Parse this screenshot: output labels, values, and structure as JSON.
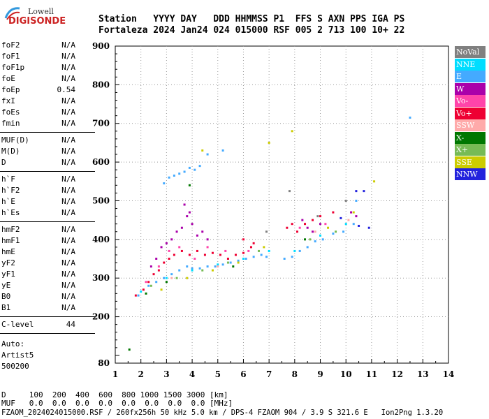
{
  "logo": {
    "top": "Lowell",
    "bottom": "DIGISONDE"
  },
  "header": {
    "labels": "Station   YYYY DAY   DDD HHMMSS P1  FFS S AXN PPS IGA PS",
    "values": "Fortaleza 2024 Jan24 024 015000 RSF 005 2 713 100 10+ 22"
  },
  "params": {
    "group1": [
      {
        "name": "foF2",
        "value": "N/A"
      },
      {
        "name": "foF1",
        "value": "N/A"
      },
      {
        "name": "foF1p",
        "value": "N/A"
      },
      {
        "name": "foE",
        "value": "N/A"
      },
      {
        "name": "foEp",
        "value": "0.54"
      },
      {
        "name": "fxI",
        "value": "N/A"
      },
      {
        "name": "foEs",
        "value": "N/A"
      },
      {
        "name": "fmin",
        "value": "N/A"
      }
    ],
    "group2": [
      {
        "name": "MUF(D)",
        "value": "N/A"
      },
      {
        "name": "M(D)",
        "value": "N/A"
      },
      {
        "name": "D",
        "value": "N/A"
      }
    ],
    "group3": [
      {
        "name": "h`F",
        "value": "N/A"
      },
      {
        "name": "h`F2",
        "value": "N/A"
      },
      {
        "name": "h`E",
        "value": "N/A"
      },
      {
        "name": "h`Es",
        "value": "N/A"
      }
    ],
    "group4": [
      {
        "name": "hmF2",
        "value": "N/A"
      },
      {
        "name": "hmF1",
        "value": "N/A"
      },
      {
        "name": "hmE",
        "value": "N/A"
      },
      {
        "name": "yF2",
        "value": "N/A"
      },
      {
        "name": "yF1",
        "value": "N/A"
      },
      {
        "name": "yE",
        "value": "N/A"
      },
      {
        "name": "B0",
        "value": "N/A"
      },
      {
        "name": "B1",
        "value": "N/A"
      }
    ],
    "clevel": {
      "name": "C-level",
      "value": "44"
    },
    "auto": [
      "Auto:",
      "Artist5",
      "500200"
    ]
  },
  "footer": {
    "dline": "D     100  200  400  600  800 1000 1500 3000 [km]",
    "mufline": "MUF   0.0  0.0  0.0  0.0  0.0  0.0  0.0  0.0 [MHz]",
    "fileline": "FZAOM_2024024015000.RSF / 260fx256h 50 kHz 5.0 km / DPS-4 FZAOM 904 / 3.9 S 321.6 E   Ion2Png 1.3.20"
  },
  "legend": [
    {
      "label": "NoVal",
      "color": "#808080"
    },
    {
      "label": "NNE",
      "color": "#00ddff"
    },
    {
      "label": "E",
      "color": "#44aaff"
    },
    {
      "label": "W",
      "color": "#aa00aa"
    },
    {
      "label": "Vo-",
      "color": "#ff44aa"
    },
    {
      "label": "Vo+",
      "color": "#ee0033"
    },
    {
      "label": "SSW",
      "color": "#ffaaaa"
    },
    {
      "label": "X-",
      "color": "#007700"
    },
    {
      "label": "X+",
      "color": "#77bb55"
    },
    {
      "label": "SSE",
      "color": "#cccc00"
    },
    {
      "label": "NNW",
      "color": "#2222dd"
    }
  ],
  "chart_data": {
    "type": "scatter",
    "xlabel": "",
    "ylabel": "",
    "xlim": [
      1,
      14
    ],
    "ylim": [
      80,
      900
    ],
    "x_ticks": [
      1,
      2,
      3,
      4,
      5,
      6,
      7,
      8,
      9,
      10,
      11,
      12,
      13,
      14
    ],
    "y_ticks": [
      80,
      200,
      300,
      400,
      500,
      600,
      700,
      800,
      900
    ],
    "series": [
      {
        "name": "E",
        "points": [
          [
            1.9,
            255
          ],
          [
            2.3,
            280
          ],
          [
            2.6,
            290
          ],
          [
            2.9,
            300
          ],
          [
            3.2,
            310
          ],
          [
            3.5,
            320
          ],
          [
            3.8,
            330
          ],
          [
            4.0,
            325
          ],
          [
            4.3,
            325
          ],
          [
            4.6,
            330
          ],
          [
            4.9,
            330
          ],
          [
            5.2,
            335
          ],
          [
            5.5,
            340
          ],
          [
            5.8,
            345
          ],
          [
            6.1,
            350
          ],
          [
            6.4,
            355
          ],
          [
            6.7,
            360
          ],
          [
            6.9,
            355
          ],
          [
            7.6,
            350
          ],
          [
            7.9,
            355
          ],
          [
            8.2,
            370
          ],
          [
            8.5,
            380
          ],
          [
            8.8,
            395
          ],
          [
            9.1,
            400
          ],
          [
            9.5,
            415
          ],
          [
            9.9,
            420
          ],
          [
            10.3,
            440
          ],
          [
            2.9,
            545
          ],
          [
            3.1,
            560
          ],
          [
            3.3,
            565
          ],
          [
            3.5,
            570
          ],
          [
            3.7,
            575
          ],
          [
            3.9,
            585
          ],
          [
            4.1,
            580
          ],
          [
            4.3,
            590
          ],
          [
            12.5,
            715
          ],
          [
            10.4,
            500
          ],
          [
            4.6,
            620
          ],
          [
            5.2,
            630
          ]
        ]
      },
      {
        "name": "W",
        "points": [
          [
            2.4,
            330
          ],
          [
            2.6,
            350
          ],
          [
            2.8,
            380
          ],
          [
            3.0,
            390
          ],
          [
            3.2,
            400
          ],
          [
            3.4,
            420
          ],
          [
            3.6,
            430
          ],
          [
            3.8,
            460
          ],
          [
            4.0,
            440
          ],
          [
            4.2,
            410
          ],
          [
            4.4,
            420
          ],
          [
            4.6,
            400
          ],
          [
            3.7,
            490
          ],
          [
            3.9,
            470
          ],
          [
            8.3,
            450
          ],
          [
            8.5,
            430
          ],
          [
            8.7,
            420
          ],
          [
            9.0,
            440
          ],
          [
            10.2,
            470
          ],
          [
            10.4,
            460
          ]
        ]
      },
      {
        "name": "Vo+",
        "points": [
          [
            1.8,
            255
          ],
          [
            2.1,
            270
          ],
          [
            2.3,
            290
          ],
          [
            2.5,
            310
          ],
          [
            2.7,
            320
          ],
          [
            2.9,
            340
          ],
          [
            3.1,
            350
          ],
          [
            3.3,
            360
          ],
          [
            3.6,
            370
          ],
          [
            3.9,
            360
          ],
          [
            4.2,
            370
          ],
          [
            4.5,
            360
          ],
          [
            4.8,
            365
          ],
          [
            5.1,
            360
          ],
          [
            5.4,
            350
          ],
          [
            5.7,
            360
          ],
          [
            6.0,
            365
          ],
          [
            6.3,
            380
          ],
          [
            7.7,
            430
          ],
          [
            7.9,
            440
          ],
          [
            8.1,
            420
          ],
          [
            8.4,
            440
          ],
          [
            8.7,
            450
          ],
          [
            9.0,
            460
          ],
          [
            9.5,
            470
          ],
          [
            6.0,
            400
          ],
          [
            6.4,
            390
          ]
        ]
      },
      {
        "name": "Vo-",
        "points": [
          [
            2.2,
            290
          ],
          [
            2.7,
            330
          ],
          [
            3.1,
            370
          ],
          [
            3.5,
            380
          ],
          [
            4.1,
            350
          ],
          [
            4.6,
            380
          ],
          [
            5.3,
            370
          ],
          [
            6.2,
            370
          ],
          [
            8.2,
            430
          ],
          [
            9.2,
            440
          ]
        ]
      },
      {
        "name": "NNE",
        "points": [
          [
            2.0,
            265
          ],
          [
            3.0,
            300
          ],
          [
            4.0,
            320
          ],
          [
            5.0,
            335
          ],
          [
            6.0,
            350
          ],
          [
            7.0,
            370
          ],
          [
            8.0,
            370
          ],
          [
            9.0,
            410
          ],
          [
            10.0,
            440
          ]
        ]
      },
      {
        "name": "X-",
        "points": [
          [
            1.55,
            115
          ],
          [
            2.2,
            260
          ],
          [
            3.0,
            290
          ],
          [
            3.9,
            540
          ],
          [
            5.6,
            330
          ],
          [
            8.4,
            400
          ]
        ]
      },
      {
        "name": "X+",
        "points": [
          [
            2.4,
            280
          ],
          [
            3.4,
            300
          ],
          [
            4.4,
            320
          ],
          [
            5.4,
            340
          ],
          [
            6.6,
            370
          ],
          [
            8.6,
            400
          ],
          [
            9.6,
            420
          ]
        ]
      },
      {
        "name": "SSE",
        "points": [
          [
            2.8,
            270
          ],
          [
            3.8,
            300
          ],
          [
            4.8,
            320
          ],
          [
            5.8,
            340
          ],
          [
            6.8,
            380
          ],
          [
            7.0,
            650
          ],
          [
            7.9,
            680
          ],
          [
            9.3,
            430
          ],
          [
            10.3,
            470
          ],
          [
            11.1,
            550
          ],
          [
            4.4,
            630
          ]
        ]
      },
      {
        "name": "SSW",
        "points": [
          [
            3.2,
            300
          ],
          [
            5.0,
            330
          ],
          [
            8.8,
            420
          ],
          [
            10.1,
            450
          ]
        ]
      },
      {
        "name": "NNW",
        "points": [
          [
            10.4,
            525
          ],
          [
            10.7,
            525
          ],
          [
            10.5,
            435
          ],
          [
            10.9,
            430
          ],
          [
            9.8,
            455
          ]
        ]
      },
      {
        "name": "NoVal",
        "points": [
          [
            7.8,
            525
          ],
          [
            8.9,
            460
          ],
          [
            10.0,
            500
          ],
          [
            6.9,
            420
          ]
        ]
      }
    ]
  }
}
